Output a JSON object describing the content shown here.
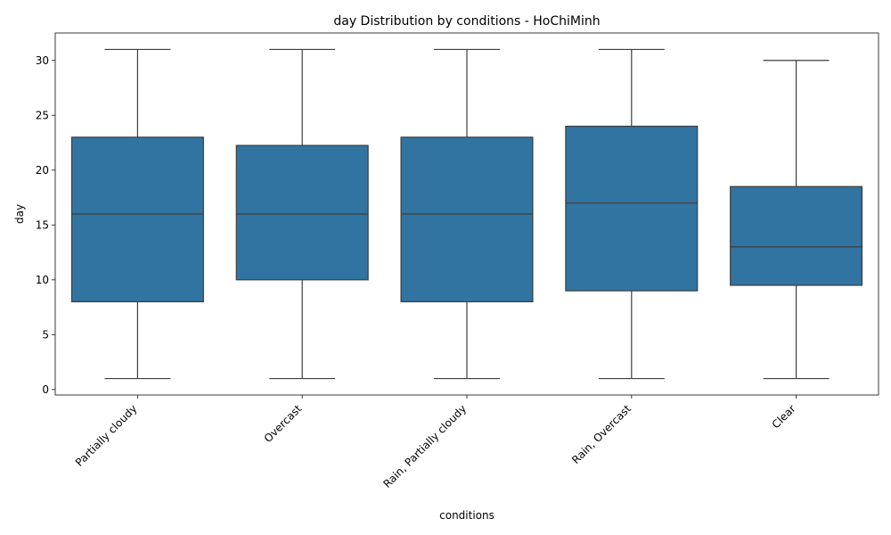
{
  "chart_data": {
    "type": "box",
    "title": "day Distribution by conditions - HoChiMinh",
    "xlabel": "conditions",
    "ylabel": "day",
    "ylim": [
      -0.5,
      32.5
    ],
    "yticks": [
      0,
      5,
      10,
      15,
      20,
      25,
      30
    ],
    "grid": false,
    "box_color": "#3274a1",
    "categories": [
      "Partially cloudy",
      "Overcast",
      "Rain, Partially cloudy",
      "Rain, Overcast",
      "Clear"
    ],
    "boxes": [
      {
        "category": "Partially cloudy",
        "whislo": 1,
        "q1": 8,
        "med": 16,
        "q3": 23,
        "whishi": 31
      },
      {
        "category": "Overcast",
        "whislo": 1,
        "q1": 10,
        "med": 16,
        "q3": 22.25,
        "whishi": 31
      },
      {
        "category": "Rain, Partially cloudy",
        "whislo": 1,
        "q1": 8,
        "med": 16,
        "q3": 23,
        "whishi": 31
      },
      {
        "category": "Rain, Overcast",
        "whislo": 1,
        "q1": 9,
        "med": 17,
        "q3": 24,
        "whishi": 31
      },
      {
        "category": "Clear",
        "whislo": 1,
        "q1": 9.5,
        "med": 13,
        "q3": 18.5,
        "whishi": 30
      }
    ]
  }
}
